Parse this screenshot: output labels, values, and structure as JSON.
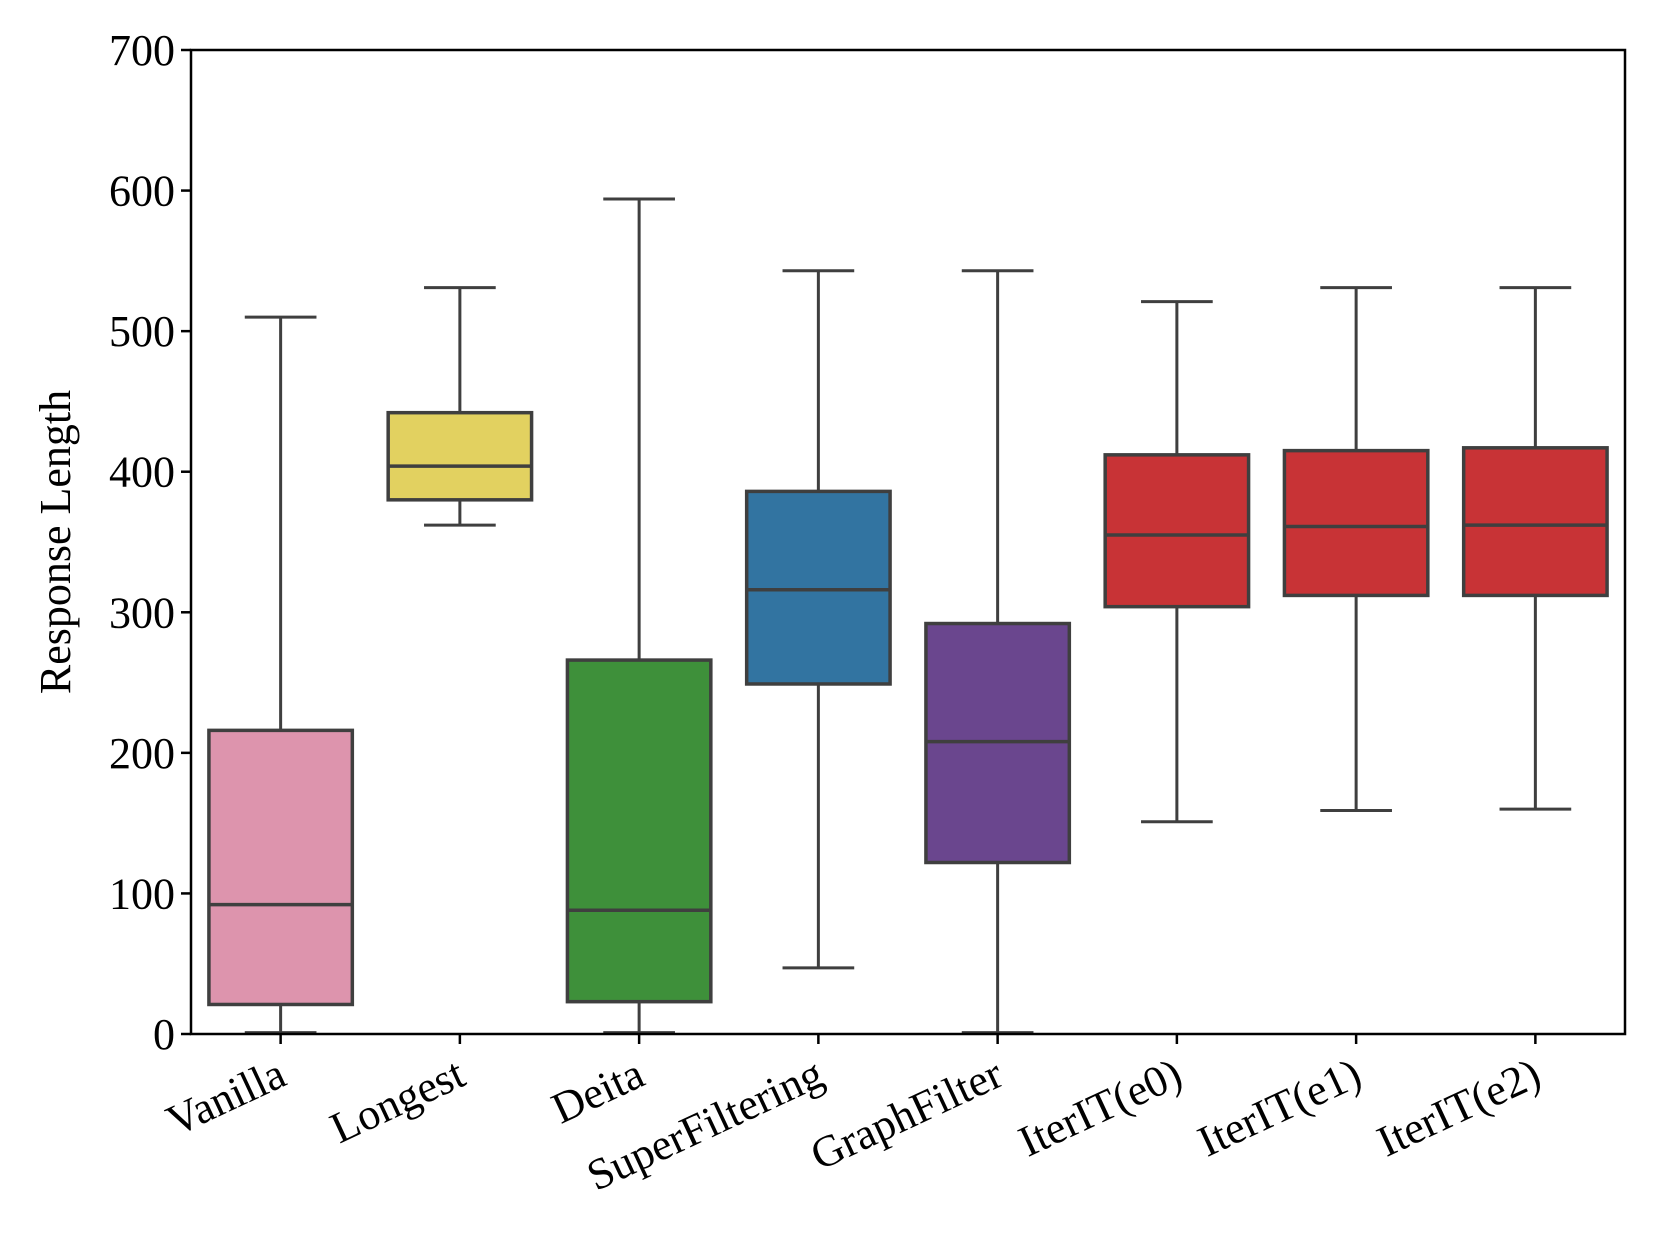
{
  "chart_data": {
    "type": "boxplot",
    "title": "",
    "xlabel": "",
    "ylabel": "Response Length",
    "ylim": [
      0,
      700
    ],
    "yticks": [
      0,
      100,
      200,
      300,
      400,
      500,
      600,
      700
    ],
    "grid": false,
    "categories": [
      "Vanilla",
      "Longest",
      "Deita",
      "SuperFiltering",
      "GraphFilter",
      "IterIT(e0)",
      "IterIT(e1)",
      "IterIT(e2)"
    ],
    "boxes": [
      {
        "name": "Vanilla",
        "color": "#dd94ad",
        "whisker_low": 1,
        "q1": 21,
        "median": 92,
        "q3": 216,
        "whisker_high": 510
      },
      {
        "name": "Longest",
        "color": "#e2d160",
        "whisker_low": 362,
        "q1": 380,
        "median": 404,
        "q3": 442,
        "whisker_high": 531
      },
      {
        "name": "Deita",
        "color": "#3e903a",
        "whisker_low": 1,
        "q1": 23,
        "median": 88,
        "q3": 266,
        "whisker_high": 594
      },
      {
        "name": "SuperFiltering",
        "color": "#3274a1",
        "whisker_low": 47,
        "q1": 249,
        "median": 316,
        "q3": 386,
        "whisker_high": 543
      },
      {
        "name": "GraphFilter",
        "color": "#6a468e",
        "whisker_low": 1,
        "q1": 122,
        "median": 208,
        "q3": 292,
        "whisker_high": 543
      },
      {
        "name": "IterIT(e0)",
        "color": "#c83336",
        "whisker_low": 151,
        "q1": 304,
        "median": 355,
        "q3": 412,
        "whisker_high": 521
      },
      {
        "name": "IterIT(e1)",
        "color": "#c83336",
        "whisker_low": 159,
        "q1": 312,
        "median": 361,
        "q3": 415,
        "whisker_high": 531
      },
      {
        "name": "IterIT(e2)",
        "color": "#c83336",
        "whisker_low": 160,
        "q1": 312,
        "median": 362,
        "q3": 417,
        "whisker_high": 531
      }
    ],
    "line_color": "#3f3f3f"
  }
}
